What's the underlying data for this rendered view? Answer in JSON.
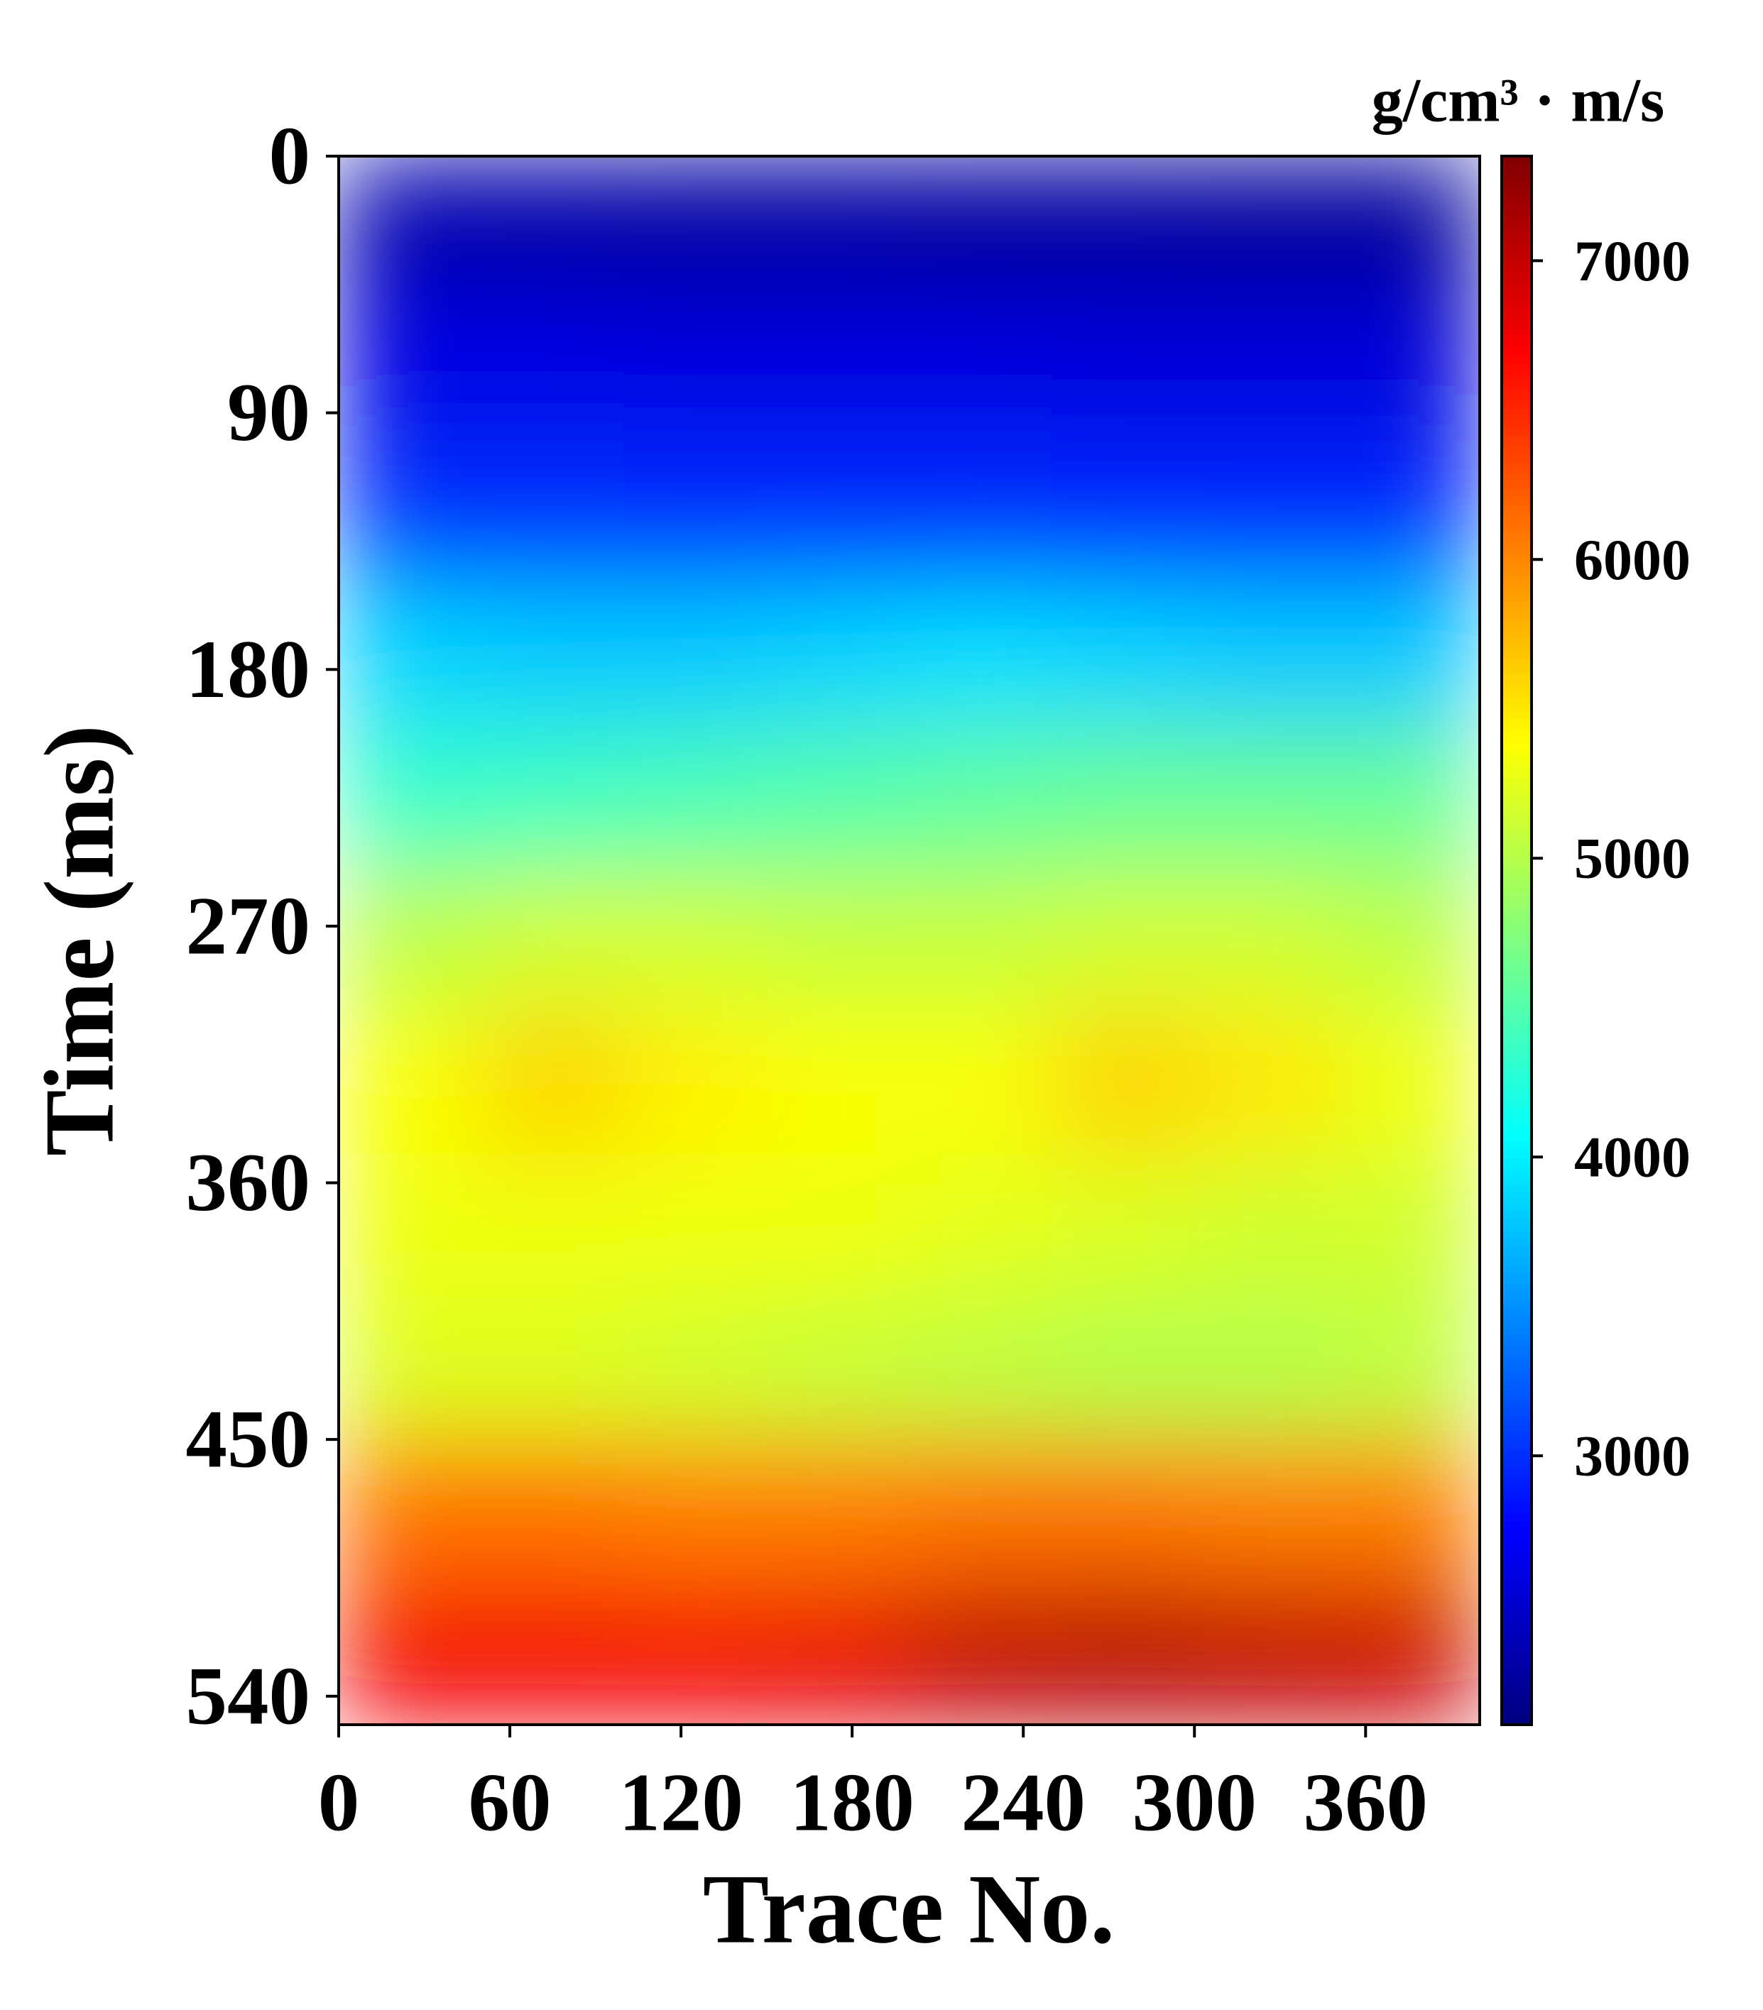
{
  "chart_data": {
    "type": "heatmap",
    "xlabel": "Trace No.",
    "ylabel": "Time (ms)",
    "colorbar_label": "g/cm³ · m/s",
    "colormap": "jet",
    "x": [
      25,
      75,
      125,
      175,
      225,
      275,
      325,
      375
    ],
    "y": [
      25,
      75,
      125,
      175,
      225,
      275,
      325,
      375,
      425,
      475,
      525
    ],
    "z": [
      [
        2350,
        2320,
        2300,
        2300,
        2280,
        2280,
        2260,
        2260
      ],
      [
        2620,
        2620,
        2600,
        2600,
        2600,
        2580,
        2580,
        2580
      ],
      [
        3000,
        3000,
        2980,
        2980,
        2980,
        2960,
        2960,
        2960
      ],
      [
        3850,
        3800,
        3800,
        3850,
        3900,
        3850,
        3800,
        3800
      ],
      [
        4350,
        4400,
        4450,
        4500,
        4550,
        4600,
        4600,
        4600
      ],
      [
        5050,
        5150,
        5150,
        5100,
        5100,
        5150,
        5150,
        5050
      ],
      [
        5350,
        5600,
        5450,
        5350,
        5350,
        5600,
        5500,
        5300
      ],
      [
        5300,
        5300,
        5300,
        5300,
        5250,
        5200,
        5150,
        5150
      ],
      [
        5200,
        5200,
        5150,
        5100,
        5050,
        5000,
        5000,
        5050
      ],
      [
        6100,
        6100,
        6050,
        6050,
        6100,
        6100,
        6050,
        6050
      ],
      [
        6750,
        6750,
        6750,
        6800,
        7000,
        7050,
        7000,
        6950
      ]
    ],
    "xlim": [
      0,
      400
    ],
    "xticks": [
      0,
      60,
      120,
      180,
      240,
      300,
      360
    ],
    "ylim": [
      0,
      550
    ],
    "yticks": [
      0,
      90,
      180,
      270,
      360,
      450,
      540
    ],
    "y_inverted": true,
    "clim": [
      2100,
      7350
    ],
    "cticks": [
      3000,
      4000,
      5000,
      6000,
      7000
    ]
  }
}
